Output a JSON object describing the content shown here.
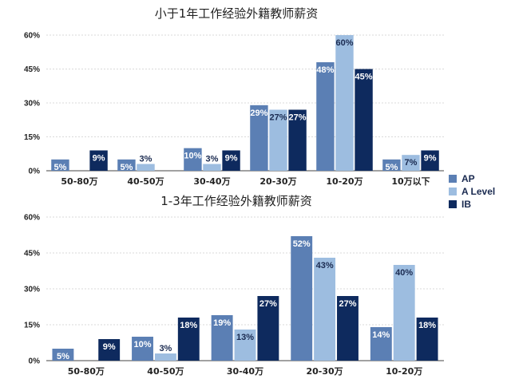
{
  "colors": {
    "AP": "#5b7fb4",
    "A Level": "#9dbde0",
    "IB": "#0e2a5e"
  },
  "legend": {
    "placement": "right",
    "entries": [
      "AP",
      "A Level",
      "IB"
    ]
  },
  "chart_data": [
    {
      "type": "bar",
      "title": "小于1年工作经验外籍教师薪资",
      "categories": [
        "50-80万",
        "40-50万",
        "30-40万",
        "20-30万",
        "10-20万",
        "10万以下"
      ],
      "ylim": [
        0,
        60
      ],
      "yticks": [
        0,
        15,
        30,
        45,
        60
      ],
      "ytick_labels": [
        "0%",
        "15%",
        "30%",
        "45%",
        "60%"
      ],
      "grid": true,
      "series": [
        {
          "name": "AP",
          "values": [
            5,
            5,
            10,
            29,
            48,
            5
          ]
        },
        {
          "name": "A Level",
          "values": [
            null,
            3,
            3,
            27,
            60,
            7
          ]
        },
        {
          "name": "IB",
          "values": [
            9,
            null,
            9,
            27,
            45,
            9
          ]
        }
      ],
      "labels": [
        [
          "5%",
          "5%",
          "10%",
          "29%",
          "48%",
          "5%"
        ],
        [
          "",
          "3%",
          "3%",
          "27%",
          "60%",
          "7%"
        ],
        [
          "9%",
          "",
          "9%",
          "27%",
          "45%",
          "9%"
        ]
      ]
    },
    {
      "type": "bar",
      "title": "1-3年工作经验外籍教师薪资",
      "categories": [
        "50-80万",
        "40-50万",
        "30-40万",
        "20-30万",
        "10-20万"
      ],
      "ylim": [
        0,
        60
      ],
      "yticks": [
        0,
        15,
        30,
        45,
        60
      ],
      "ytick_labels": [
        "0%",
        "15%",
        "30%",
        "45%",
        "60%"
      ],
      "grid": true,
      "series": [
        {
          "name": "AP",
          "values": [
            5,
            10,
            19,
            52,
            14
          ]
        },
        {
          "name": "A Level",
          "values": [
            null,
            3,
            13,
            43,
            40
          ]
        },
        {
          "name": "IB",
          "values": [
            9,
            18,
            27,
            27,
            18
          ]
        }
      ],
      "labels": [
        [
          "5%",
          "10%",
          "19%",
          "52%",
          "14%"
        ],
        [
          "",
          "3%",
          "13%",
          "43%",
          "40%"
        ],
        [
          "9%",
          "18%",
          "27%",
          "27%",
          "18%"
        ]
      ]
    }
  ]
}
